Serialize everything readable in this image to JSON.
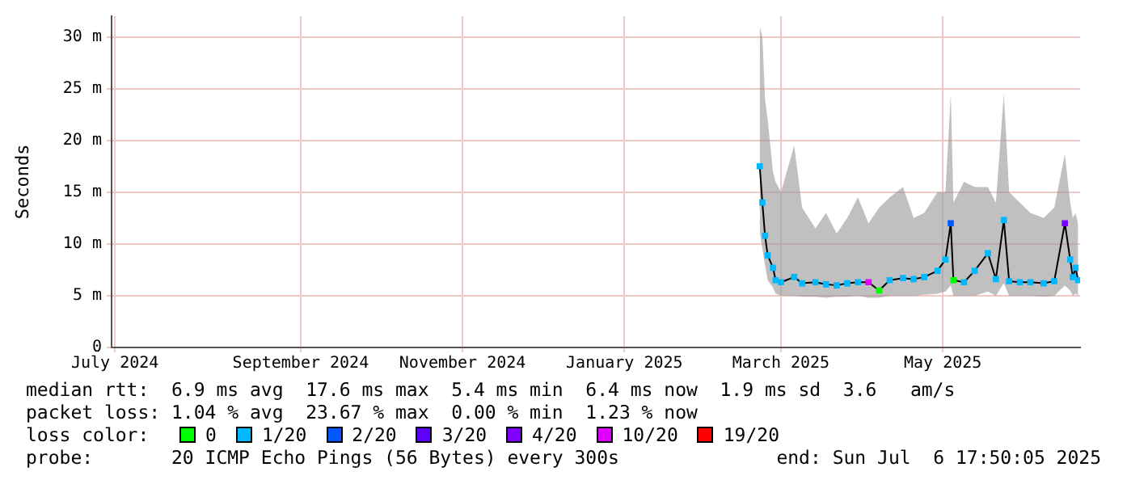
{
  "chart_data": {
    "type": "line",
    "ylabel": "Seconds",
    "x": [
      "2025-03-08",
      "2025-03-09",
      "2025-03-10",
      "2025-03-11",
      "2025-03-13",
      "2025-03-14",
      "2025-03-16",
      "2025-03-21",
      "2025-03-24",
      "2025-03-29",
      "2025-04-02",
      "2025-04-06",
      "2025-04-10",
      "2025-04-14",
      "2025-04-18",
      "2025-04-22",
      "2025-04-26",
      "2025-05-01",
      "2025-05-05",
      "2025-05-09",
      "2025-05-14",
      "2025-05-17",
      "2025-05-19",
      "2025-05-20",
      "2025-05-24",
      "2025-05-28",
      "2025-06-02",
      "2025-06-05",
      "2025-06-08",
      "2025-06-10",
      "2025-06-14",
      "2025-06-18",
      "2025-06-23",
      "2025-06-27",
      "2025-07-01",
      "2025-07-03",
      "2025-07-04",
      "2025-07-05",
      "2025-07-06"
    ],
    "series": [
      {
        "type": "line",
        "color": "#000000",
        "values": [
          17.5,
          14,
          10.8,
          8.9,
          7.7,
          6.5,
          6.3,
          6.8,
          6.2,
          6.3,
          6.1,
          6,
          6.2,
          6.3,
          6.3,
          5.5,
          6.5,
          6.7,
          6.6,
          6.8,
          7.4,
          8.5,
          12,
          6.5,
          6.3,
          7.4,
          9.1,
          6.6,
          12.3,
          6.4,
          6.3,
          6.3,
          6.2,
          6.4,
          12,
          8.5,
          6.8,
          7.7,
          6.5
        ],
        "lower": [
          11.2,
          9.5,
          8,
          6.5,
          5.8,
          5.2,
          5,
          5,
          4.9,
          4.9,
          4.8,
          4.9,
          4.9,
          5,
          4.8,
          4.8,
          5,
          5,
          5,
          5.1,
          5.2,
          5.4,
          6,
          5,
          5,
          5,
          5.4,
          5,
          6.2,
          5,
          5,
          5,
          4.9,
          5,
          6,
          5.5,
          5,
          5.2,
          5
        ],
        "upper": [
          31,
          30,
          24,
          22,
          17,
          16,
          15,
          19.5,
          13.5,
          11.5,
          13,
          11,
          12.5,
          14.5,
          12,
          13.5,
          14.5,
          15.5,
          12.5,
          13,
          15,
          15,
          24.5,
          14,
          16,
          15.5,
          15.5,
          14,
          24.5,
          15,
          14,
          13,
          12.5,
          13.5,
          18.7,
          14,
          12.5,
          13,
          12
        ]
      },
      {
        "type": "scatter",
        "name": "0",
        "color": "#00ff00",
        "marker": "square",
        "x": [
          "2025-04-22",
          "2025-05-20"
        ],
        "values": [
          5.5,
          6.5
        ]
      },
      {
        "type": "scatter",
        "name": "1/20",
        "color": "#00b8ff",
        "marker": "square",
        "x": [
          "2025-03-08",
          "2025-03-09",
          "2025-03-10",
          "2025-03-11",
          "2025-03-13",
          "2025-03-14",
          "2025-03-16",
          "2025-03-21",
          "2025-03-24",
          "2025-03-29",
          "2025-04-02",
          "2025-04-06",
          "2025-04-10",
          "2025-04-14",
          "2025-04-26",
          "2025-05-01",
          "2025-05-05",
          "2025-05-09",
          "2025-05-14",
          "2025-05-17",
          "2025-05-24",
          "2025-05-28",
          "2025-06-02",
          "2025-06-05",
          "2025-06-08",
          "2025-06-10",
          "2025-06-14",
          "2025-06-18",
          "2025-06-23",
          "2025-06-27",
          "2025-07-03",
          "2025-07-04",
          "2025-07-05",
          "2025-07-06"
        ],
        "values": [
          17.5,
          14,
          10.8,
          8.9,
          7.7,
          6.5,
          6.3,
          6.8,
          6.2,
          6.3,
          6.1,
          6,
          6.2,
          6.3,
          6.5,
          6.7,
          6.6,
          6.8,
          7.4,
          8.5,
          6.3,
          7.4,
          9.1,
          6.6,
          12.3,
          6.4,
          6.3,
          6.3,
          6.2,
          6.4,
          8.5,
          6.8,
          7.7,
          6.5
        ]
      },
      {
        "type": "scatter",
        "name": "2/20",
        "color": "#0059ff",
        "marker": "square",
        "x": [
          "2025-05-19"
        ],
        "values": [
          12
        ]
      },
      {
        "type": "scatter",
        "name": "3/20",
        "color": "#5e00ff",
        "values": [
          null,
          null,
          null,
          null,
          null,
          null,
          null,
          null,
          null,
          null,
          null,
          null,
          null,
          null,
          null,
          null,
          null,
          null,
          null,
          null,
          null,
          null,
          null,
          null,
          null,
          null,
          null,
          null,
          null,
          null,
          null,
          null,
          null,
          null,
          null,
          null,
          null,
          null,
          null
        ]
      },
      {
        "type": "scatter",
        "name": "4/20",
        "color": "#7e00ff",
        "marker": "square",
        "x": [
          "2025-07-01"
        ],
        "values": [
          12
        ]
      },
      {
        "type": "scatter",
        "name": "10/20",
        "color": "#dd00ff",
        "marker": "square",
        "x": [
          "2025-04-18"
        ],
        "values": [
          6.3
        ]
      },
      {
        "type": "scatter",
        "name": "19/20",
        "color": "#ff0000",
        "values": [
          null,
          null,
          null,
          null,
          null,
          null,
          null,
          null,
          null,
          null,
          null,
          null,
          null,
          null,
          null,
          null,
          null,
          null,
          null,
          null,
          null,
          null,
          null,
          null,
          null,
          null,
          null,
          null,
          null,
          null,
          null,
          null,
          null,
          null,
          null,
          null,
          null,
          null,
          null
        ]
      }
    ],
    "xlim": [
      "2024-07-06T17:50",
      "2025-07-06T17:50"
    ],
    "xticks": [
      {
        "value": "2024-07-08",
        "label": "July 2024"
      },
      {
        "value": "2024-09-16",
        "label": "September 2024"
      },
      {
        "value": "2024-11-16",
        "label": "November 2024"
      },
      {
        "value": "2025-01-16",
        "label": "January 2025"
      },
      {
        "value": "2025-03-16",
        "label": "March 2025"
      },
      {
        "value": "2025-05-16",
        "label": "May 2025"
      }
    ],
    "ylim": [
      0,
      32
    ],
    "yticks": [
      0,
      {
        "value": 5,
        "label": "5 m"
      },
      {
        "value": 10,
        "label": "10 m"
      },
      {
        "value": 15,
        "label": "15 m"
      },
      {
        "value": 20,
        "label": "20 m"
      },
      {
        "value": 25,
        "label": "25 m"
      },
      {
        "value": 30,
        "label": "30 m"
      }
    ],
    "grid": true,
    "legend": "bottom",
    "legend_title": "loss color:",
    "line_style": "solid",
    "annotations": [
      "median rtt:  6.9 ms avg  17.6 ms max  5.4 ms min  6.4 ms now  1.9 ms sd  3.6   am/s",
      "packet loss: 1.04 % avg  23.67 % max  0.00 % min  1.23 % now",
      "probe:       20 ICMP Echo Pings (56 Bytes) every 300s",
      "end: Sun Jul  6 17:50:05 2025"
    ]
  }
}
